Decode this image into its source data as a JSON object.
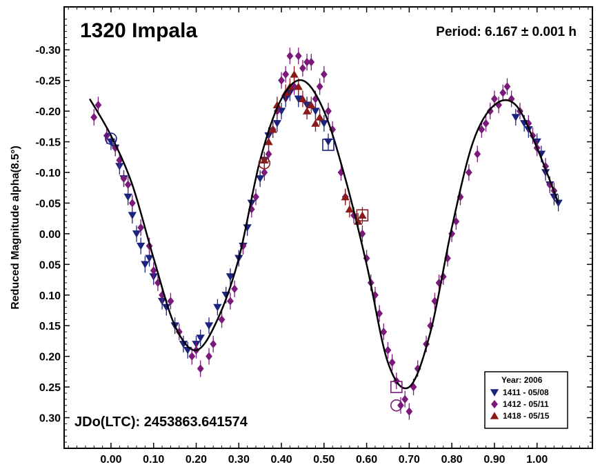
{
  "chart_data": {
    "type": "scatter",
    "title": "1320 Impala",
    "period_label": "Period: 6.167 ± 0.001 h",
    "epoch_label": "JDo(LTC): 2453863.641574",
    "ylabel": "Reduced Magnitude alpha(8.5°)",
    "xlabel": "",
    "xlim": [
      -0.11,
      1.13
    ],
    "ylim": [
      -0.37,
      0.35
    ],
    "y_inverted": true,
    "grid": false,
    "legend_position": "bottom-right",
    "legend_title": "Year: 2006",
    "x_ticks": [
      "0.00",
      "0.10",
      "0.20",
      "0.30",
      "0.40",
      "0.50",
      "0.60",
      "0.70",
      "0.80",
      "0.90",
      "1.00"
    ],
    "y_ticks": [
      "-0.30",
      "-0.25",
      "-0.20",
      "-0.15",
      "-0.10",
      "-0.05",
      "0.00",
      "0.05",
      "0.10",
      "0.15",
      "0.20",
      "0.25",
      "0.30"
    ],
    "colors": {
      "series_1411": "#1a237e",
      "series_1412": "#7b1a7b",
      "series_1418": "#8b1a1a",
      "fit_curve": "#000000"
    },
    "fit_curve": {
      "x": [
        -0.05,
        0.0,
        0.05,
        0.1,
        0.15,
        0.2,
        0.25,
        0.3,
        0.35,
        0.4,
        0.45,
        0.5,
        0.55,
        0.6,
        0.65,
        0.7,
        0.75,
        0.8,
        0.85,
        0.9,
        0.95,
        1.0,
        1.05
      ],
      "y": [
        -0.22,
        -0.16,
        -0.08,
        0.04,
        0.15,
        0.19,
        0.14,
        0.04,
        -0.12,
        -0.22,
        -0.25,
        -0.2,
        -0.09,
        0.05,
        0.21,
        0.25,
        0.16,
        -0.01,
        -0.15,
        -0.21,
        -0.21,
        -0.14,
        -0.05
      ]
    },
    "series": [
      {
        "name": "1411 - 05/08",
        "marker": "triangle-down",
        "points": [
          [
            0.0,
            -0.15
          ],
          [
            0.01,
            -0.14
          ],
          [
            0.02,
            -0.11
          ],
          [
            0.03,
            -0.09
          ],
          [
            0.04,
            -0.06
          ],
          [
            0.05,
            -0.03
          ],
          [
            0.06,
            0.0
          ],
          [
            0.07,
            0.02
          ],
          [
            0.08,
            0.05
          ],
          [
            0.09,
            0.04
          ],
          [
            0.1,
            0.07
          ],
          [
            0.12,
            0.11
          ],
          [
            0.13,
            0.12
          ],
          [
            0.15,
            0.15
          ],
          [
            0.17,
            0.18
          ],
          [
            0.18,
            0.19
          ],
          [
            0.2,
            0.18
          ],
          [
            0.21,
            0.17
          ],
          [
            0.23,
            0.15
          ],
          [
            0.25,
            0.12
          ],
          [
            0.27,
            0.1
          ],
          [
            0.28,
            0.07
          ],
          [
            0.3,
            0.04
          ],
          [
            0.31,
            0.02
          ],
          [
            0.32,
            -0.01
          ],
          [
            0.33,
            -0.05
          ],
          [
            0.35,
            -0.09
          ],
          [
            0.36,
            -0.12
          ],
          [
            0.37,
            -0.16
          ],
          [
            0.39,
            -0.18
          ],
          [
            0.4,
            -0.2
          ],
          [
            0.41,
            -0.22
          ],
          [
            0.42,
            -0.23
          ],
          [
            0.44,
            -0.22
          ],
          [
            0.46,
            -0.21
          ],
          [
            0.48,
            -0.2
          ],
          [
            0.5,
            -0.18
          ],
          [
            0.51,
            -0.15
          ],
          [
            0.95,
            -0.19
          ],
          [
            0.97,
            -0.18
          ],
          [
            0.98,
            -0.17
          ],
          [
            1.0,
            -0.15
          ],
          [
            1.01,
            -0.13
          ],
          [
            1.02,
            -0.1
          ],
          [
            1.03,
            -0.08
          ],
          [
            1.04,
            -0.06
          ],
          [
            1.05,
            -0.05
          ]
        ]
      },
      {
        "name": "1412 - 05/11",
        "marker": "diamond",
        "points": [
          [
            -0.04,
            -0.19
          ],
          [
            -0.03,
            -0.21
          ],
          [
            -0.01,
            -0.16
          ],
          [
            0.01,
            -0.14
          ],
          [
            0.02,
            -0.12
          ],
          [
            0.03,
            -0.09
          ],
          [
            0.04,
            -0.08
          ],
          [
            0.05,
            -0.05
          ],
          [
            0.07,
            -0.01
          ],
          [
            0.09,
            0.02
          ],
          [
            0.1,
            0.06
          ],
          [
            0.11,
            0.08
          ],
          [
            0.12,
            0.1
          ],
          [
            0.14,
            0.11
          ],
          [
            0.16,
            0.16
          ],
          [
            0.19,
            0.2
          ],
          [
            0.2,
            0.19
          ],
          [
            0.21,
            0.22
          ],
          [
            0.23,
            0.2
          ],
          [
            0.24,
            0.18
          ],
          [
            0.26,
            0.14
          ],
          [
            0.28,
            0.11
          ],
          [
            0.29,
            0.09
          ],
          [
            0.31,
            0.02
          ],
          [
            0.33,
            -0.04
          ],
          [
            0.34,
            -0.06
          ],
          [
            0.36,
            -0.1
          ],
          [
            0.37,
            -0.13
          ],
          [
            0.38,
            -0.17
          ],
          [
            0.39,
            -0.2
          ],
          [
            0.4,
            -0.25
          ],
          [
            0.41,
            -0.26
          ],
          [
            0.42,
            -0.29
          ],
          [
            0.43,
            -0.24
          ],
          [
            0.44,
            -0.29
          ],
          [
            0.45,
            -0.27
          ],
          [
            0.46,
            -0.28
          ],
          [
            0.47,
            -0.28
          ],
          [
            0.48,
            -0.22
          ],
          [
            0.49,
            -0.24
          ],
          [
            0.5,
            -0.26
          ],
          [
            0.51,
            -0.2
          ],
          [
            0.52,
            -0.17
          ],
          [
            0.54,
            -0.1
          ],
          [
            0.55,
            -0.06
          ],
          [
            0.57,
            -0.03
          ],
          [
            0.59,
            0.0
          ],
          [
            0.6,
            0.04
          ],
          [
            0.61,
            0.08
          ],
          [
            0.62,
            0.1
          ],
          [
            0.63,
            0.13
          ],
          [
            0.64,
            0.16
          ],
          [
            0.65,
            0.19
          ],
          [
            0.66,
            0.21
          ],
          [
            0.67,
            0.24
          ],
          [
            0.68,
            0.28
          ],
          [
            0.69,
            0.27
          ],
          [
            0.7,
            0.29
          ],
          [
            0.71,
            0.25
          ],
          [
            0.72,
            0.22
          ],
          [
            0.74,
            0.18
          ],
          [
            0.75,
            0.15
          ],
          [
            0.76,
            0.11
          ],
          [
            0.77,
            0.08
          ],
          [
            0.78,
            0.07
          ],
          [
            0.79,
            0.04
          ],
          [
            0.8,
            0.0
          ],
          [
            0.81,
            -0.02
          ],
          [
            0.82,
            -0.06
          ],
          [
            0.84,
            -0.1
          ],
          [
            0.86,
            -0.13
          ],
          [
            0.87,
            -0.17
          ],
          [
            0.88,
            -0.18
          ],
          [
            0.89,
            -0.2
          ],
          [
            0.9,
            -0.22
          ],
          [
            0.91,
            -0.21
          ],
          [
            0.92,
            -0.23
          ],
          [
            0.93,
            -0.24
          ],
          [
            0.94,
            -0.22
          ],
          [
            0.96,
            -0.2
          ],
          [
            0.98,
            -0.18
          ],
          [
            0.99,
            -0.16
          ],
          [
            1.0,
            -0.14
          ],
          [
            1.02,
            -0.11
          ],
          [
            1.03,
            -0.08
          ],
          [
            1.04,
            -0.07
          ]
        ]
      },
      {
        "name": "1418 - 05/15",
        "marker": "triangle-up",
        "points": [
          [
            0.36,
            -0.12
          ],
          [
            0.37,
            -0.15
          ],
          [
            0.38,
            -0.17
          ],
          [
            0.39,
            -0.21
          ],
          [
            0.41,
            -0.23
          ],
          [
            0.42,
            -0.24
          ],
          [
            0.43,
            -0.26
          ],
          [
            0.44,
            -0.24
          ],
          [
            0.45,
            -0.22
          ],
          [
            0.46,
            -0.2
          ],
          [
            0.47,
            -0.21
          ],
          [
            0.48,
            -0.18
          ],
          [
            0.49,
            -0.19
          ],
          [
            0.55,
            -0.06
          ],
          [
            0.56,
            -0.04
          ],
          [
            0.58,
            -0.02
          ],
          [
            0.59,
            -0.03
          ]
        ]
      }
    ],
    "highlighted_points": [
      {
        "x": 0.0,
        "y": -0.155,
        "shape": "circle",
        "series": "1411 - 05/08"
      },
      {
        "x": 0.51,
        "y": -0.145,
        "shape": "square",
        "series": "1411 - 05/08"
      },
      {
        "x": 0.36,
        "y": -0.115,
        "shape": "circle",
        "series": "1418 - 05/15"
      },
      {
        "x": 0.59,
        "y": -0.03,
        "shape": "square",
        "series": "1418 - 05/15"
      },
      {
        "x": 0.67,
        "y": 0.25,
        "shape": "square",
        "series": "1412 - 05/11"
      },
      {
        "x": 0.67,
        "y": 0.28,
        "shape": "circle",
        "series": "1412 - 05/11"
      }
    ]
  }
}
